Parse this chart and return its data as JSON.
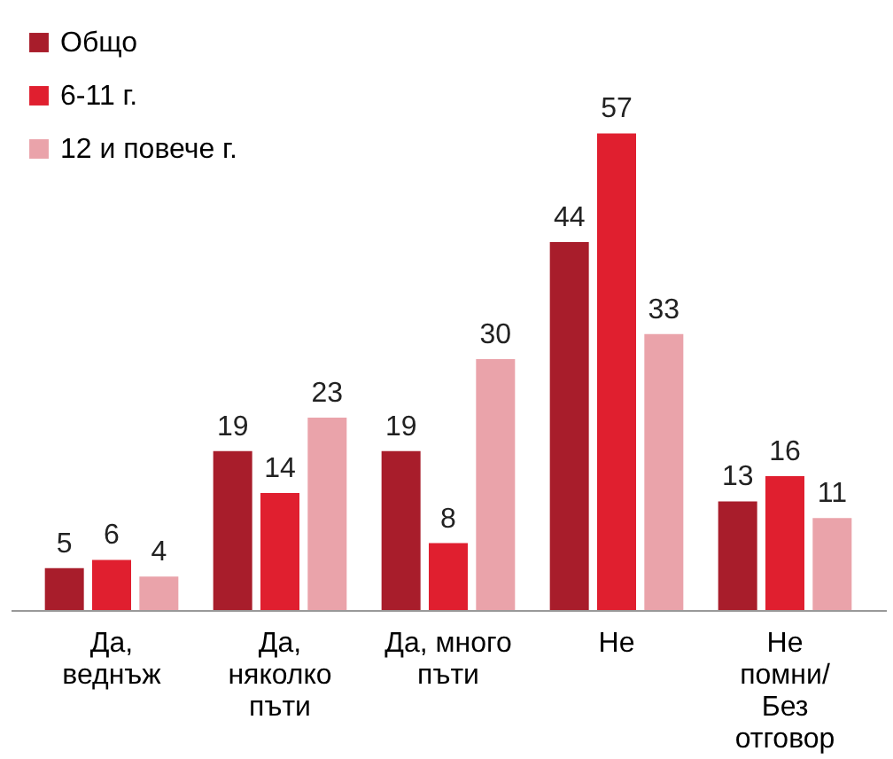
{
  "chart_data": {
    "type": "bar",
    "categories": [
      "Да,\nведнъж",
      "Да,\nняколко\nпъти",
      "Да, много\nпъти",
      "Не",
      "Не\nпомни/\nБез\nотговор"
    ],
    "series": [
      {
        "name": "Общо",
        "color": "#a81d2b",
        "values": [
          5,
          19,
          19,
          44,
          13
        ]
      },
      {
        "name": "6-11 г.",
        "color": "#e01f2f",
        "values": [
          6,
          14,
          8,
          57,
          16
        ]
      },
      {
        "name": "12 и повече г.",
        "color": "#eaa3aa",
        "values": [
          4,
          23,
          30,
          33,
          11
        ]
      }
    ],
    "data_labels": true,
    "legend": "top left",
    "grid": false
  }
}
